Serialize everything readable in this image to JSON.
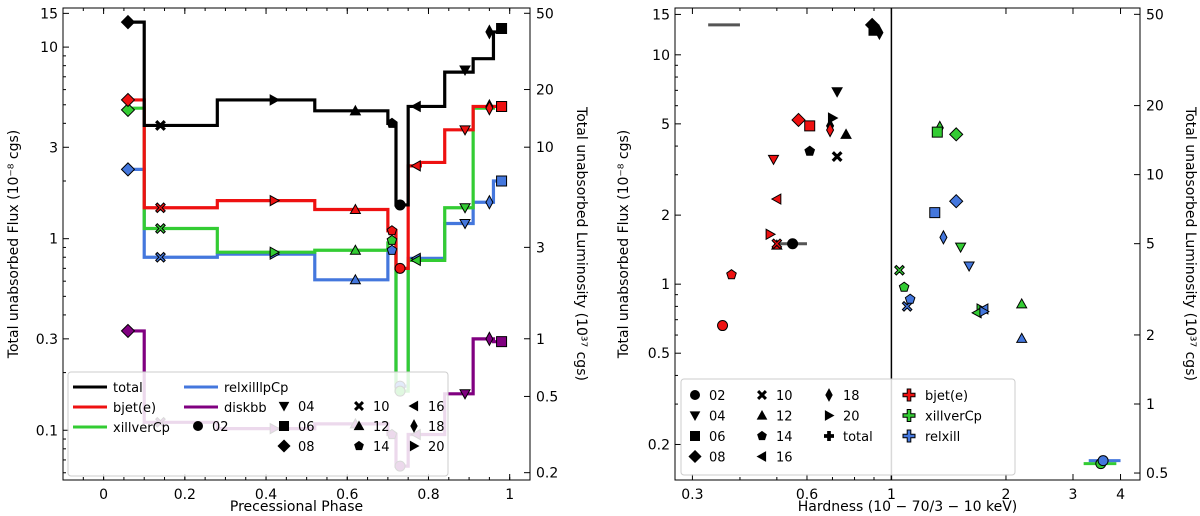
{
  "chart_data": [
    {
      "type": "line",
      "xlabel": "Precessional Phase",
      "ylabel": "Total unabsorbed Flux (10⁻⁸ cgs)",
      "ylabel_right": "Total unabsorbed Luminosity (10³⁷ cgs)",
      "xlim": [
        -0.1,
        1.05
      ],
      "ylim": [
        0.055,
        16
      ],
      "yscale": "log",
      "x_ticks": [
        "0",
        "0.2",
        "0.4",
        "0.6",
        "0.8",
        "1"
      ],
      "y_ticks": [
        "0.1",
        "0.3",
        "1",
        "3",
        "10",
        "15"
      ],
      "y_ticks_right": [
        "0.2",
        "0.5",
        "1",
        "3",
        "10",
        "20",
        "50"
      ],
      "legend_lines": [
        {
          "name": "total",
          "color": "#000000"
        },
        {
          "name": "bjet(e)",
          "color": "#ee1111"
        },
        {
          "name": "xillverCp",
          "color": "#33cc33"
        },
        {
          "name": "relxilllpCp",
          "color": "#4477dd"
        },
        {
          "name": "diskbb",
          "color": "#800080"
        }
      ],
      "legend_markers": [
        {
          "label": "02",
          "marker": "circle"
        },
        {
          "label": "04",
          "marker": "triangle-down"
        },
        {
          "label": "06",
          "marker": "square"
        },
        {
          "label": "08",
          "marker": "diamond"
        },
        {
          "label": "10",
          "marker": "x"
        },
        {
          "label": "12",
          "marker": "triangle-up"
        },
        {
          "label": "14",
          "marker": "pentagon"
        },
        {
          "label": "16",
          "marker": "triangle-left"
        },
        {
          "label": "18",
          "marker": "thin-diamond"
        },
        {
          "label": "20",
          "marker": "triangle-right"
        }
      ],
      "series": [
        {
          "name": "total",
          "color": "#000000",
          "steps": [
            [
              0.06,
              0.1,
              13.5
            ],
            [
              0.1,
              0.28,
              3.9
            ],
            [
              0.28,
              0.52,
              5.3
            ],
            [
              0.52,
              0.7,
              4.65
            ],
            [
              0.7,
              0.72,
              4.0
            ],
            [
              0.72,
              0.75,
              1.5
            ],
            [
              0.75,
              0.84,
              4.9
            ],
            [
              0.84,
              0.91,
              7.4
            ],
            [
              0.91,
              0.96,
              8.7
            ],
            [
              0.96,
              0.98,
              12.0
            ]
          ],
          "points": [
            [
              0.06,
              13.5,
              "diamond"
            ],
            [
              0.14,
              3.9,
              "x"
            ],
            [
              0.42,
              5.3,
              "triangle-right"
            ],
            [
              0.62,
              4.65,
              "triangle-up"
            ],
            [
              0.71,
              4.0,
              "pentagon"
            ],
            [
              0.73,
              1.5,
              "circle"
            ],
            [
              0.77,
              4.9,
              "triangle-left"
            ],
            [
              0.89,
              7.6,
              "triangle-down"
            ],
            [
              0.95,
              12.0,
              "thin-diamond"
            ],
            [
              0.98,
              12.5,
              "square"
            ]
          ]
        },
        {
          "name": "bjet(e)",
          "color": "#ee1111",
          "steps": [
            [
              0.06,
              0.1,
              5.3
            ],
            [
              0.1,
              0.28,
              1.45
            ],
            [
              0.28,
              0.52,
              1.58
            ],
            [
              0.52,
              0.7,
              1.42
            ],
            [
              0.7,
              0.72,
              1.1
            ],
            [
              0.72,
              0.75,
              0.7
            ],
            [
              0.75,
              0.78,
              2.4
            ],
            [
              0.78,
              0.84,
              2.5
            ],
            [
              0.84,
              0.91,
              3.7
            ],
            [
              0.91,
              0.96,
              4.9
            ],
            [
              0.96,
              0.98,
              4.9
            ]
          ],
          "points": [
            [
              0.06,
              5.3,
              "diamond"
            ],
            [
              0.14,
              1.45,
              "x"
            ],
            [
              0.42,
              1.58,
              "triangle-right"
            ],
            [
              0.62,
              1.42,
              "triangle-up"
            ],
            [
              0.71,
              1.1,
              "pentagon"
            ],
            [
              0.73,
              0.7,
              "circle"
            ],
            [
              0.77,
              2.4,
              "triangle-left"
            ],
            [
              0.89,
              3.7,
              "triangle-down"
            ],
            [
              0.95,
              4.8,
              "thin-diamond"
            ],
            [
              0.98,
              4.9,
              "square"
            ]
          ]
        },
        {
          "name": "xillverCp",
          "color": "#33cc33",
          "steps": [
            [
              0.06,
              0.1,
              4.8
            ],
            [
              0.1,
              0.28,
              1.13
            ],
            [
              0.28,
              0.52,
              0.85
            ],
            [
              0.52,
              0.7,
              0.87
            ],
            [
              0.7,
              0.72,
              0.95
            ],
            [
              0.72,
              0.75,
              0.16
            ],
            [
              0.75,
              0.84,
              0.77
            ],
            [
              0.84,
              0.91,
              1.45
            ],
            [
              0.91,
              0.96,
              4.8
            ],
            [
              0.96,
              0.98,
              4.9
            ]
          ],
          "points": [
            [
              0.06,
              4.7,
              "diamond"
            ],
            [
              0.14,
              1.13,
              "x"
            ],
            [
              0.42,
              0.85,
              "triangle-right"
            ],
            [
              0.62,
              0.87,
              "triangle-up"
            ],
            [
              0.71,
              0.98,
              "pentagon"
            ],
            [
              0.73,
              0.16,
              "circle"
            ],
            [
              0.77,
              0.77,
              "triangle-left"
            ],
            [
              0.89,
              1.45,
              "triangle-down"
            ],
            [
              0.95,
              4.9,
              "thin-diamond"
            ],
            [
              0.98,
              4.9,
              "square"
            ]
          ]
        },
        {
          "name": "relxilllpCp",
          "color": "#4477dd",
          "steps": [
            [
              0.06,
              0.1,
              2.3
            ],
            [
              0.1,
              0.28,
              0.8
            ],
            [
              0.28,
              0.52,
              0.83
            ],
            [
              0.52,
              0.7,
              0.61
            ],
            [
              0.7,
              0.72,
              0.87
            ],
            [
              0.72,
              0.75,
              0.17
            ],
            [
              0.75,
              0.84,
              0.79
            ],
            [
              0.84,
              0.91,
              1.2
            ],
            [
              0.91,
              0.96,
              1.55
            ],
            [
              0.96,
              0.98,
              2.0
            ]
          ],
          "points": [
            [
              0.06,
              2.3,
              "diamond"
            ],
            [
              0.14,
              0.8,
              "x"
            ],
            [
              0.42,
              0.83,
              "triangle-right"
            ],
            [
              0.62,
              0.61,
              "triangle-up"
            ],
            [
              0.71,
              0.87,
              "pentagon"
            ],
            [
              0.73,
              0.17,
              "circle"
            ],
            [
              0.77,
              0.79,
              "triangle-left"
            ],
            [
              0.89,
              1.2,
              "triangle-down"
            ],
            [
              0.95,
              1.55,
              "thin-diamond"
            ],
            [
              0.98,
              2.0,
              "square"
            ]
          ]
        },
        {
          "name": "diskbb",
          "color": "#800080",
          "steps": [
            [
              0.06,
              0.1,
              0.33
            ],
            [
              0.1,
              0.28,
              0.11
            ],
            [
              0.28,
              0.52,
              0.102
            ],
            [
              0.52,
              0.7,
              0.108
            ],
            [
              0.7,
              0.72,
              0.095
            ],
            [
              0.72,
              0.75,
              0.065
            ],
            [
              0.75,
              0.84,
              0.095
            ],
            [
              0.84,
              0.91,
              0.155
            ],
            [
              0.91,
              0.96,
              0.3
            ],
            [
              0.96,
              0.98,
              0.29
            ]
          ],
          "points": [
            [
              0.06,
              0.33,
              "diamond"
            ],
            [
              0.14,
              0.11,
              "x"
            ],
            [
              0.42,
              0.102,
              "triangle-right"
            ],
            [
              0.62,
              0.108,
              "triangle-up"
            ],
            [
              0.71,
              0.095,
              "pentagon"
            ],
            [
              0.73,
              0.065,
              "circle"
            ],
            [
              0.77,
              0.095,
              "triangle-left"
            ],
            [
              0.89,
              0.155,
              "triangle-down"
            ],
            [
              0.95,
              0.3,
              "thin-diamond"
            ],
            [
              0.98,
              0.29,
              "square"
            ]
          ]
        }
      ]
    },
    {
      "type": "scatter",
      "xlabel": "Hardness (10 − 70/3 − 10 keV)",
      "ylabel": "Total unabsorbed Flux (10⁻⁸ cgs)",
      "ylabel_right": "Total unabsorbed Luminosity (10³⁷ cgs)",
      "xscale": "log",
      "yscale": "log",
      "xlim": [
        0.27,
        4.5
      ],
      "ylim": [
        0.14,
        16
      ],
      "x_ticks": [
        "0.3",
        "0.6",
        "1",
        "2",
        "3",
        "4"
      ],
      "y_ticks": [
        "0.2",
        "0.5",
        "1",
        "2",
        "5",
        "10",
        "15"
      ],
      "y_ticks_right": [
        "0.5",
        "1",
        "2",
        "5",
        "10",
        "20",
        "50"
      ],
      "vline_x": 1,
      "legend_markers": [
        {
          "label": "02",
          "marker": "circle"
        },
        {
          "label": "04",
          "marker": "triangle-down"
        },
        {
          "label": "06",
          "marker": "square"
        },
        {
          "label": "08",
          "marker": "diamond"
        },
        {
          "label": "10",
          "marker": "x"
        },
        {
          "label": "12",
          "marker": "triangle-up"
        },
        {
          "label": "14",
          "marker": "pentagon"
        },
        {
          "label": "16",
          "marker": "triangle-left"
        },
        {
          "label": "18",
          "marker": "thin-diamond"
        },
        {
          "label": "20",
          "marker": "triangle-right"
        },
        {
          "label": "total",
          "marker": "plus"
        }
      ],
      "legend_colors": [
        {
          "label": "bjet(e)",
          "color": "#ee1111"
        },
        {
          "label": "xillverCp",
          "color": "#33cc33"
        },
        {
          "label": "relxill",
          "color": "#4477dd"
        }
      ],
      "series": [
        {
          "name": "total",
          "color": "#000000",
          "points": [
            [
              0.89,
              13.5,
              "diamond"
            ],
            [
              0.93,
              12.5,
              "thin-diamond"
            ],
            [
              0.9,
              12.8,
              "square"
            ],
            [
              0.72,
              6.9,
              "triangle-down"
            ],
            [
              0.7,
              5.3,
              "triangle-right"
            ],
            [
              0.69,
              4.9,
              "thin-diamond"
            ],
            [
              0.76,
              4.5,
              "triangle-up"
            ],
            [
              0.61,
              3.8,
              "pentagon"
            ],
            [
              0.72,
              3.6,
              "x"
            ],
            [
              0.55,
              1.5,
              "circle"
            ]
          ]
        },
        {
          "name": "bjet(e)",
          "color": "#ee1111",
          "points": [
            [
              0.36,
              0.66,
              "circle"
            ],
            [
              0.38,
              1.1,
              "pentagon"
            ],
            [
              0.49,
              3.5,
              "triangle-down"
            ],
            [
              0.5,
              2.35,
              "triangle-left"
            ],
            [
              0.48,
              1.65,
              "triangle-right"
            ],
            [
              0.5,
              1.48,
              "triangle-up"
            ],
            [
              0.57,
              5.2,
              "diamond"
            ],
            [
              0.61,
              4.9,
              "square"
            ],
            [
              0.69,
              4.7,
              "thin-diamond"
            ],
            [
              0.5,
              1.5,
              "x"
            ]
          ]
        },
        {
          "name": "xillverCp",
          "color": "#33cc33",
          "points": [
            [
              1.05,
              1.15,
              "x"
            ],
            [
              1.08,
              0.97,
              "pentagon"
            ],
            [
              1.34,
              4.8,
              "thin-diamond"
            ],
            [
              1.32,
              4.6,
              "square"
            ],
            [
              1.48,
              4.5,
              "diamond"
            ],
            [
              1.52,
              1.45,
              "triangle-down"
            ],
            [
              1.72,
              0.78,
              "triangle-right"
            ],
            [
              1.68,
              0.75,
              "triangle-left"
            ],
            [
              2.2,
              0.82,
              "triangle-up"
            ],
            [
              3.55,
              0.165,
              "circle"
            ]
          ]
        },
        {
          "name": "relxill",
          "color": "#4477dd",
          "points": [
            [
              1.1,
              0.8,
              "x"
            ],
            [
              1.12,
              0.86,
              "pentagon"
            ],
            [
              1.37,
              1.6,
              "thin-diamond"
            ],
            [
              1.3,
              2.05,
              "square"
            ],
            [
              1.48,
              2.3,
              "diamond"
            ],
            [
              1.6,
              1.2,
              "triangle-down"
            ],
            [
              1.75,
              0.78,
              "triangle-left"
            ],
            [
              1.75,
              0.76,
              "triangle-right"
            ],
            [
              2.2,
              0.58,
              "triangle-up"
            ],
            [
              3.6,
              0.17,
              "circle"
            ]
          ]
        }
      ]
    }
  ]
}
